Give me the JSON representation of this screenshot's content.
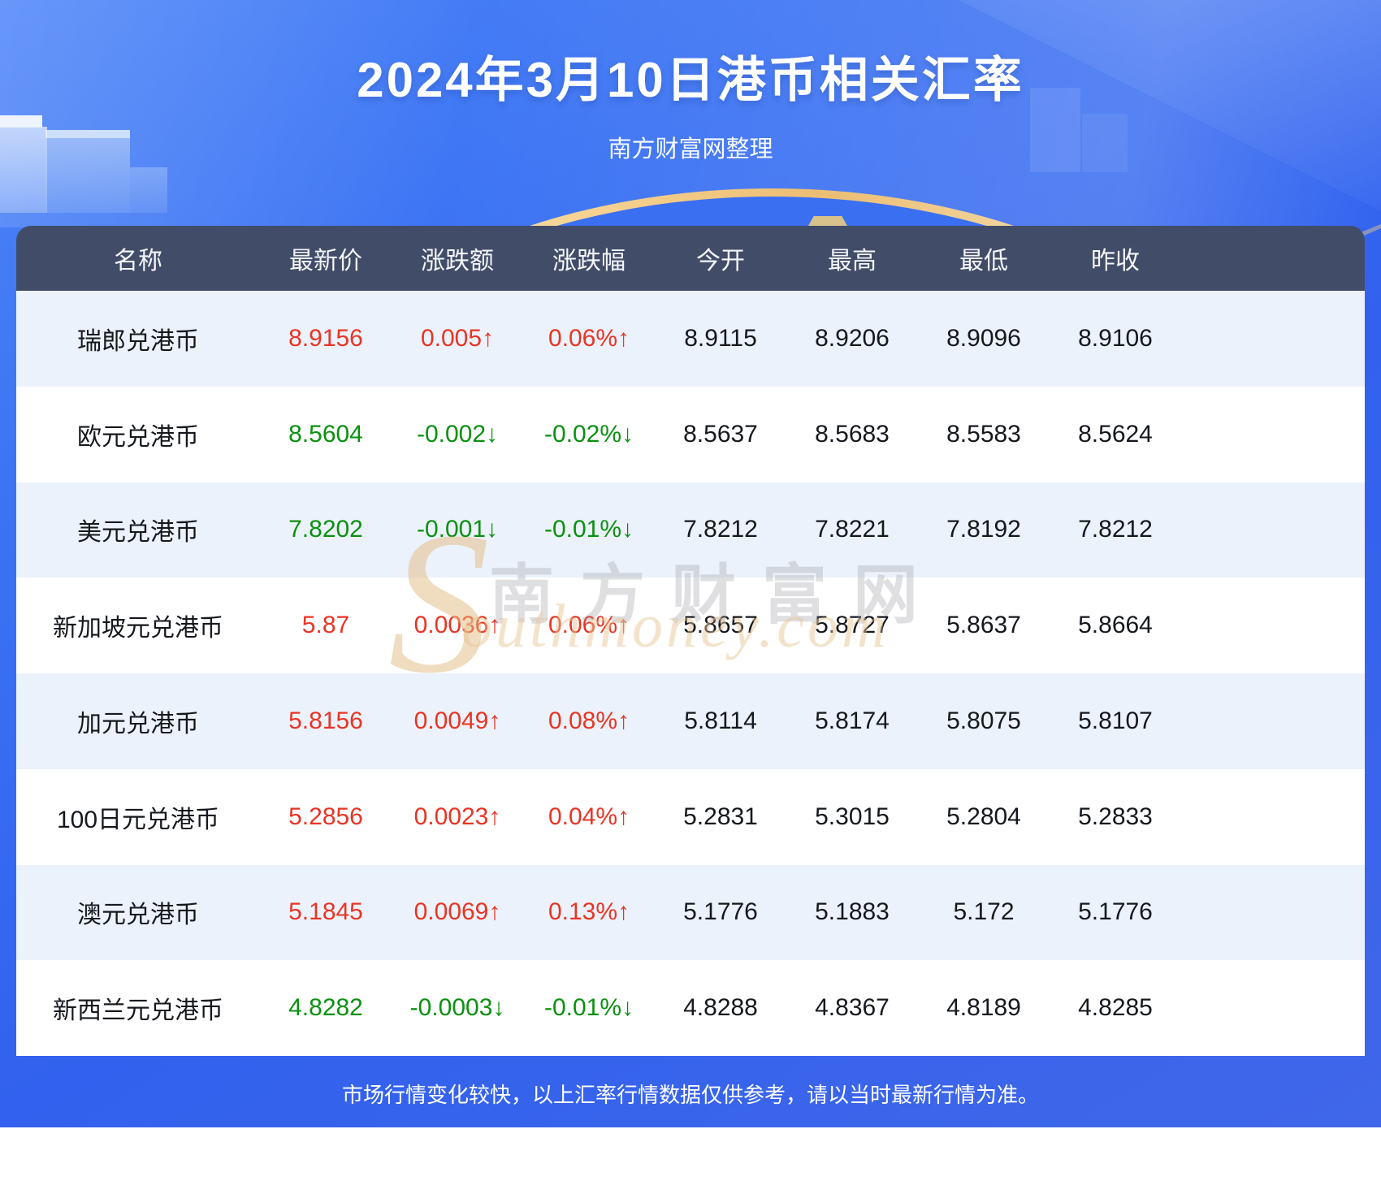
{
  "page": {
    "title": "2024年3月10日港币相关汇率",
    "subtitle": "南方财富网整理",
    "disclaimer": "市场行情变化较快，以上汇率行情数据仅供参考，请以当时最新行情为准。"
  },
  "watermark": {
    "initial": "S",
    "script_text": "outhmoney.com",
    "cn_text": "南方财富网"
  },
  "colors": {
    "banner_blue": "#3b72f3",
    "table_header_bg": "#414d68",
    "row_alt_bg": "#ecf2fb",
    "up_red": "#e93425",
    "down_green": "#0a9110",
    "gold_arc": "#ecbd72"
  },
  "chart_data": {
    "type": "table",
    "title": "2024年3月10日港币相关汇率",
    "subtitle": "南方财富网整理",
    "columns": [
      "名称",
      "最新价",
      "涨跌额",
      "涨跌幅",
      "今开",
      "最高",
      "最低",
      "昨收"
    ],
    "rows": [
      [
        "瑞郎兑港币",
        "8.9156",
        "0.005↑",
        "0.06%↑",
        "8.9115",
        "8.9206",
        "8.9096",
        "8.9106"
      ],
      [
        "欧元兑港币",
        "8.5604",
        "-0.002↓",
        "-0.02%↓",
        "8.5637",
        "8.5683",
        "8.5583",
        "8.5624"
      ],
      [
        "美元兑港币",
        "7.8202",
        "-0.001↓",
        "-0.01%↓",
        "7.8212",
        "7.8221",
        "7.8192",
        "7.8212"
      ],
      [
        "新加坡元兑港币",
        "5.87",
        "0.0036↑",
        "0.06%↑",
        "5.8657",
        "5.8727",
        "5.8637",
        "5.8664"
      ],
      [
        "加元兑港币",
        "5.8156",
        "0.0049↑",
        "0.08%↑",
        "5.8114",
        "5.8174",
        "5.8075",
        "5.8107"
      ],
      [
        "100日元兑港币",
        "5.2856",
        "0.0023↑",
        "0.04%↑",
        "5.2831",
        "5.3015",
        "5.2804",
        "5.2833"
      ],
      [
        "澳元兑港币",
        "5.1845",
        "0.0069↑",
        "0.13%↑",
        "5.1776",
        "5.1883",
        "5.172",
        "5.1776"
      ],
      [
        "新西兰元兑港币",
        "4.8282",
        "-0.0003↓",
        "-0.01%↓",
        "4.8288",
        "4.8367",
        "4.8189",
        "4.8285"
      ]
    ],
    "row_trends": [
      "up",
      "down",
      "down",
      "up",
      "up",
      "up",
      "up",
      "down"
    ],
    "colored_columns": [
      1,
      2,
      3
    ]
  }
}
